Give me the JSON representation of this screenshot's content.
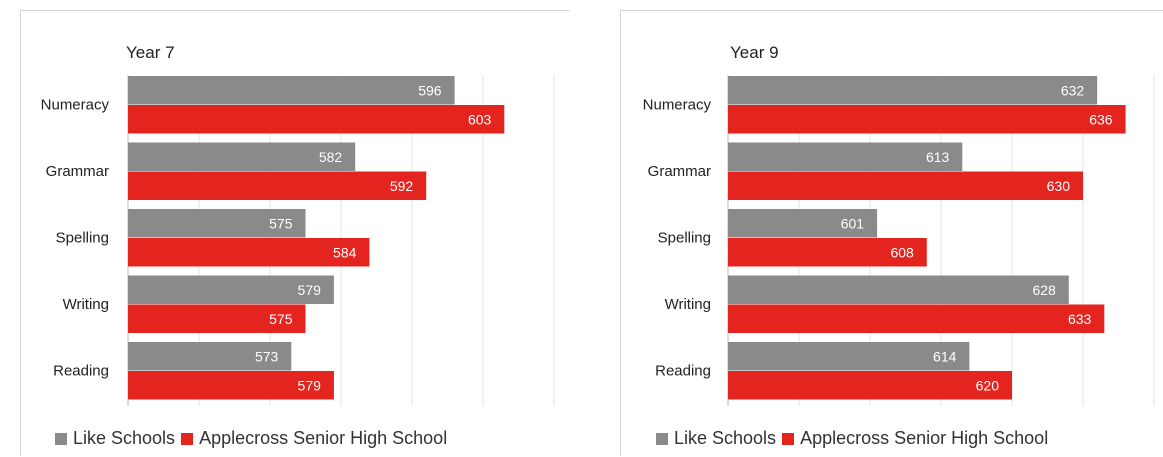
{
  "colors": {
    "like_schools": "#8a8a8a",
    "applecross": "#e3241f",
    "grid": "#e3e3e3",
    "axis": "#bdbdbd",
    "category_text": "#222222",
    "value_text": "#ffffff"
  },
  "chart_data": [
    {
      "type": "bar",
      "orientation": "horizontal",
      "title": "Year 7",
      "categories": [
        "Numeracy",
        "Grammar",
        "Spelling",
        "Writing",
        "Reading"
      ],
      "series": [
        {
          "name": "Like Schools",
          "values": [
            596,
            582,
            575,
            579,
            573
          ]
        },
        {
          "name": "Applecross Senior High School",
          "values": [
            603,
            592,
            584,
            575,
            579
          ]
        }
      ],
      "xlim": [
        550,
        610
      ],
      "grid": true,
      "legend": "bottom"
    },
    {
      "type": "bar",
      "orientation": "horizontal",
      "title": "Year 9",
      "categories": [
        "Numeracy",
        "Grammar",
        "Spelling",
        "Writing",
        "Reading"
      ],
      "series": [
        {
          "name": "Like Schools",
          "values": [
            632,
            613,
            601,
            628,
            614
          ]
        },
        {
          "name": "Applecross Senior High School",
          "values": [
            636,
            630,
            608,
            633,
            620
          ]
        }
      ],
      "xlim": [
        580,
        640
      ],
      "grid": true,
      "legend": "bottom"
    }
  ]
}
